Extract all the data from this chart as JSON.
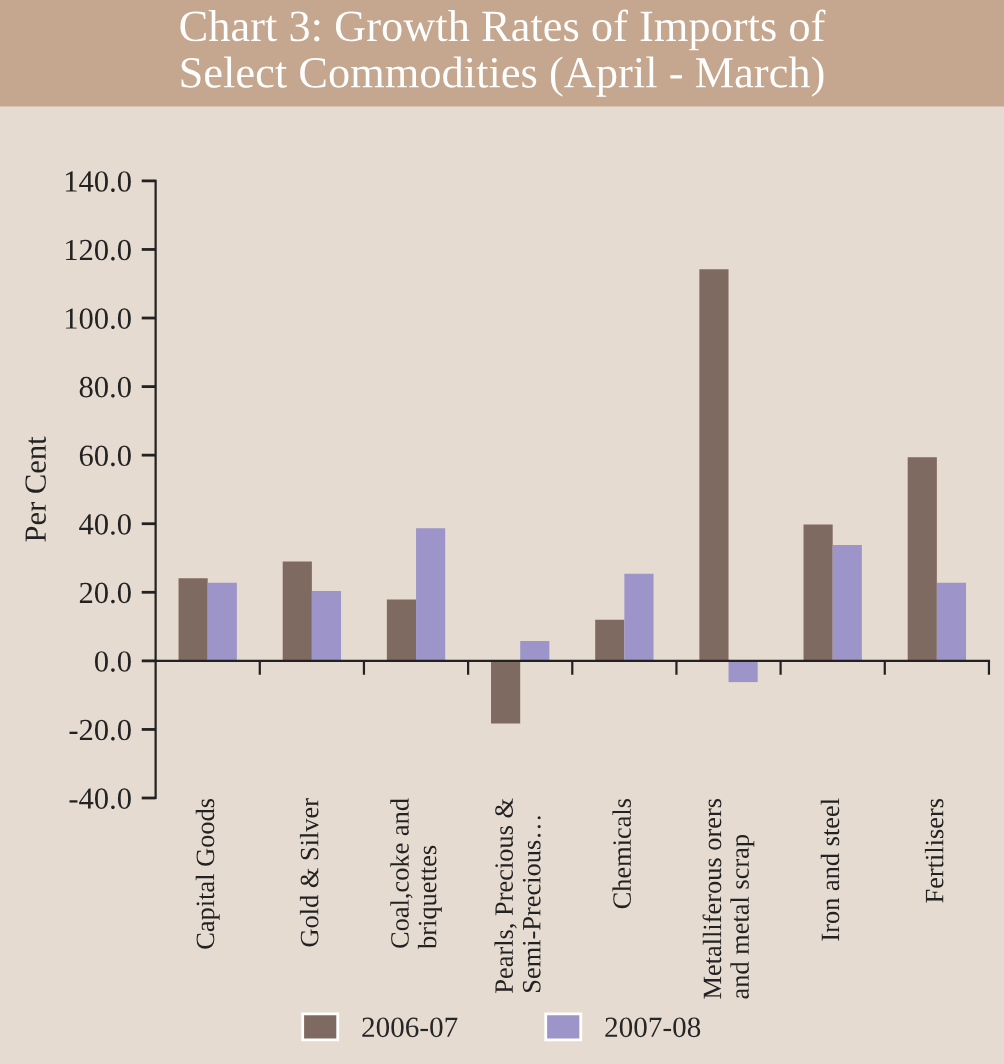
{
  "chart_data": {
    "type": "bar",
    "title": "Chart 3: Growth Rates of Imports of\nSelect Commodities (April - March)",
    "ylabel": "Per Cent",
    "categories": [
      "Capital Goods",
      "Gold & Silver",
      "Coal,coke and\nbriquettes",
      "Pearls, Precious &\nSemi-Precious…",
      "Chemicals",
      "Metalliferous orers\nand metal scrap",
      "Iron and steel",
      "Fertilisers"
    ],
    "series": [
      {
        "name": "2006-07",
        "color": "#7f6a62",
        "values": [
          24.1,
          29.0,
          17.9,
          -18.3,
          12.0,
          114.2,
          39.8,
          59.4
        ]
      },
      {
        "name": "2007-08",
        "color": "#9d95c9",
        "values": [
          22.8,
          20.4,
          38.7,
          5.8,
          25.4,
          -6.2,
          33.8,
          22.8
        ]
      }
    ],
    "ylim": [
      -40,
      140
    ],
    "yticks": [
      {
        "value": -40,
        "label": "-40.0"
      },
      {
        "value": -20,
        "label": "-20.0"
      },
      {
        "value": 0,
        "label": "0.0"
      },
      {
        "value": 20,
        "label": "20.0"
      },
      {
        "value": 40,
        "label": "40.0"
      },
      {
        "value": 60,
        "label": "60.0"
      },
      {
        "value": 80,
        "label": "80.0"
      },
      {
        "value": 100,
        "label": "100.0"
      },
      {
        "value": 120,
        "label": "120.0"
      },
      {
        "value": 140,
        "label": "140.0"
      }
    ],
    "legend": "bottom"
  }
}
